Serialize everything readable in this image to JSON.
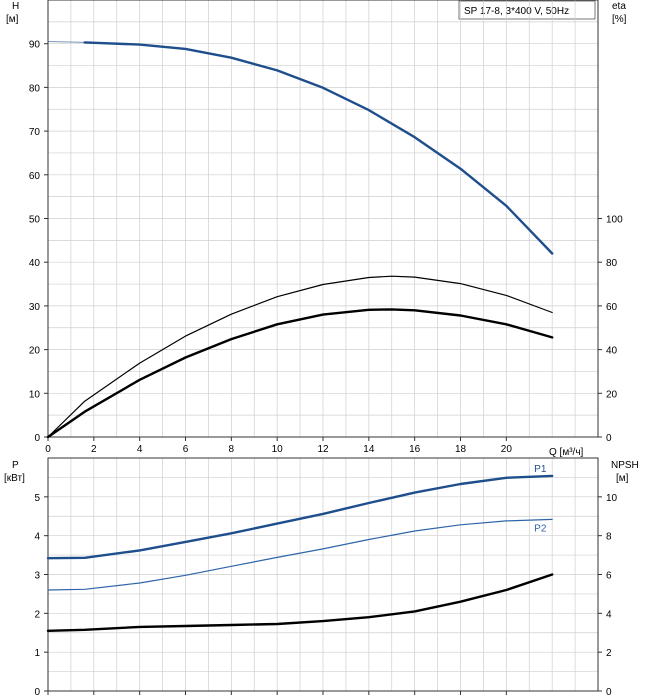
{
  "chart_data": [
    {
      "type": "line",
      "title": "SP 17-8, 3*400 V, 50Hz",
      "xlabel": "Q [м³/ч]",
      "x_ticks": [
        0,
        2,
        4,
        6,
        8,
        10,
        12,
        14,
        16,
        18,
        20
      ],
      "xlim": [
        0,
        24
      ],
      "ylabel_left": {
        "name": "H",
        "unit": "[м]"
      },
      "ylabel_right": {
        "name": "eta",
        "unit": "[%]"
      },
      "ylim_left": [
        0,
        100
      ],
      "y_ticks_left": [
        0,
        10,
        20,
        30,
        40,
        50,
        60,
        70,
        80,
        90
      ],
      "ylim_right": [
        0,
        200
      ],
      "y_ticks_right": [
        0,
        20,
        40,
        60,
        80,
        100
      ],
      "grid": true,
      "series": [
        {
          "key": "H",
          "axis": "left",
          "color": "#1f4e8c",
          "dashed_from_origin": true,
          "x": [
            0,
            1.6,
            4,
            6,
            8,
            10,
            12,
            14,
            16,
            18,
            20,
            22
          ],
          "y": [
            90.5,
            90.3,
            89.8,
            88.8,
            86.8,
            83.9,
            79.9,
            74.8,
            68.6,
            61.4,
            52.9,
            42.0
          ]
        },
        {
          "key": "eta_thin",
          "axis": "left",
          "color": "#000000",
          "thin": true,
          "x": [
            0,
            1.6,
            4,
            6,
            8,
            10,
            12,
            14,
            15,
            16,
            18,
            20,
            22
          ],
          "y": [
            0,
            8.2,
            16.9,
            23.1,
            28.1,
            32.1,
            34.9,
            36.5,
            36.8,
            36.6,
            35.1,
            32.4,
            28.5
          ]
        },
        {
          "key": "eta",
          "axis": "left",
          "color": "#000000",
          "x": [
            0,
            1.6,
            4,
            6,
            8,
            10,
            12,
            14,
            15,
            16,
            18,
            20,
            22
          ],
          "y": [
            0,
            5.8,
            13.1,
            18.2,
            22.4,
            25.8,
            28.0,
            29.1,
            29.2,
            29.0,
            27.8,
            25.8,
            22.8
          ]
        }
      ]
    },
    {
      "type": "line",
      "x_ticks": [
        0,
        2,
        4,
        6,
        8,
        10,
        12,
        14,
        16,
        18,
        20
      ],
      "xlim": [
        0,
        24
      ],
      "ylabel_left": {
        "name": "P",
        "unit": "[кВт]"
      },
      "ylabel_right": {
        "name": "NPSH",
        "unit": "[м]"
      },
      "ylim_left": [
        0,
        6
      ],
      "y_ticks_left": [
        0,
        1,
        2,
        3,
        4,
        5
      ],
      "ylim_right": [
        0,
        12
      ],
      "y_ticks_right": [
        0,
        2,
        4,
        6,
        8,
        10
      ],
      "grid": true,
      "series": [
        {
          "name": "P1",
          "axis": "left",
          "color": "#1f4e8c",
          "x": [
            0,
            1.6,
            4,
            6,
            8,
            10,
            12,
            14,
            16,
            18,
            20,
            22
          ],
          "y": [
            3.42,
            3.43,
            3.62,
            3.84,
            4.06,
            4.31,
            4.56,
            4.84,
            5.11,
            5.33,
            5.49,
            5.54
          ]
        },
        {
          "name": "P2",
          "axis": "left",
          "color": "#2f65a8",
          "thin": true,
          "x": [
            0,
            1.6,
            4,
            6,
            8,
            10,
            12,
            14,
            16,
            18,
            20,
            22
          ],
          "y": [
            2.6,
            2.62,
            2.78,
            2.98,
            3.21,
            3.44,
            3.66,
            3.9,
            4.12,
            4.28,
            4.38,
            4.42
          ]
        },
        {
          "key": "NPSH",
          "axis": "right",
          "color": "#000000",
          "x": [
            0,
            1.6,
            4,
            6,
            8,
            10,
            12,
            14,
            16,
            18,
            20,
            22
          ],
          "y": [
            3.1,
            3.15,
            3.3,
            3.35,
            3.4,
            3.45,
            3.6,
            3.8,
            4.1,
            4.6,
            5.2,
            6.0
          ]
        }
      ]
    }
  ]
}
